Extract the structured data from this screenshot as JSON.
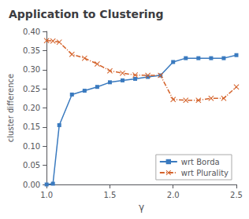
{
  "chart_data": {
    "type": "line",
    "title": "Application to Clustering",
    "xlabel": "γ",
    "ylabel": "cluster difference",
    "x": [
      1.0,
      1.05,
      1.1,
      1.2,
      1.3,
      1.4,
      1.5,
      1.6,
      1.7,
      1.8,
      1.9,
      2.0,
      2.1,
      2.2,
      2.3,
      2.4,
      2.5
    ],
    "series": [
      {
        "name": "wrt Borda",
        "color": "#3a7abf",
        "marker": "square",
        "line_style": "solid",
        "values": [
          0.0,
          0.002,
          0.155,
          0.235,
          0.245,
          0.255,
          0.267,
          0.272,
          0.276,
          0.281,
          0.285,
          0.32,
          0.33,
          0.33,
          0.33,
          0.33,
          0.338
        ]
      },
      {
        "name": "wrt Plurality",
        "color": "#d4622a",
        "marker": "x",
        "line_style": "dashdot",
        "values": [
          0.376,
          0.375,
          0.372,
          0.34,
          0.33,
          0.315,
          0.297,
          0.291,
          0.286,
          0.285,
          0.285,
          0.222,
          0.22,
          0.22,
          0.225,
          0.225,
          0.255
        ]
      }
    ],
    "xlim": [
      1.0,
      2.5
    ],
    "ylim": [
      0.0,
      0.4
    ],
    "xticks": [
      {
        "value": 1.0,
        "label": "1.0"
      },
      1.5,
      {
        "value": 2.0,
        "label": "2.0"
      },
      2.5
    ],
    "yticks": [
      {
        "value": 0.0,
        "label": "0.00"
      },
      0.05,
      {
        "value": 0.1,
        "label": "0.10"
      },
      0.15,
      {
        "value": 0.2,
        "label": "0.20"
      },
      0.25,
      {
        "value": 0.3,
        "label": "0.30"
      },
      0.35,
      {
        "value": 0.4,
        "label": "0.40"
      }
    ],
    "grid": false,
    "legend": "lower right"
  }
}
